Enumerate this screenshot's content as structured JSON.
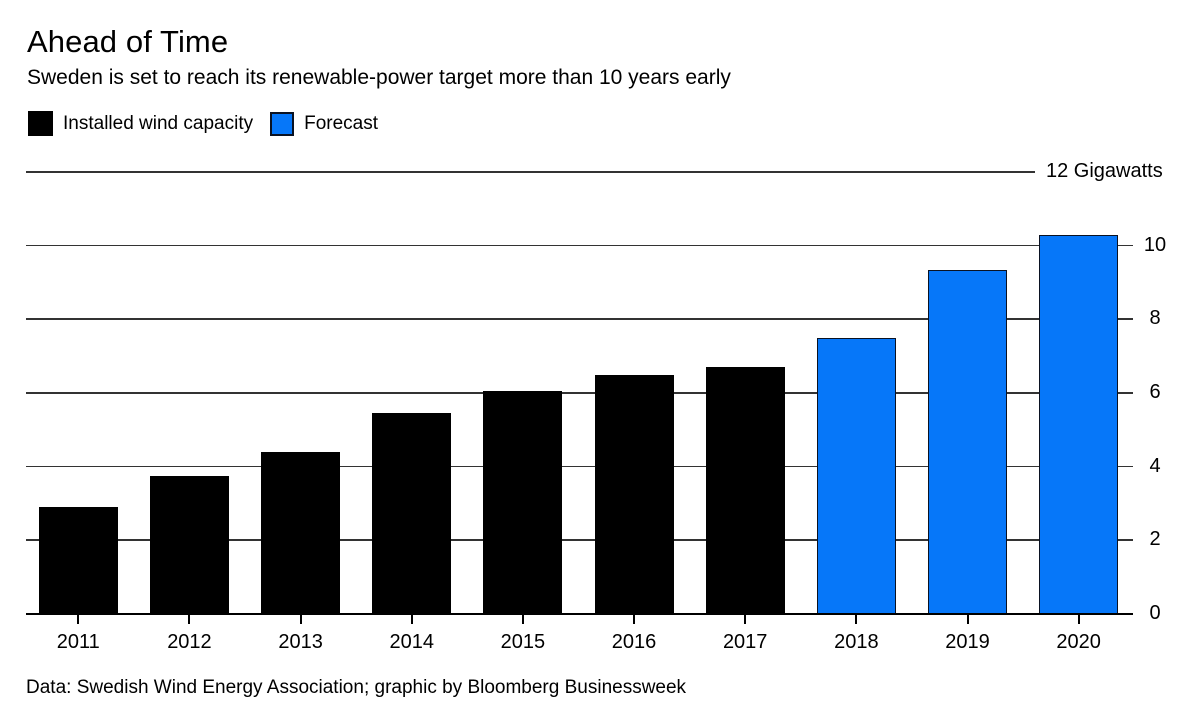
{
  "header": {
    "title": "Ahead of Time",
    "subtitle": "Sweden is set to reach its renewable-power target more than 10 years early"
  },
  "legend": [
    {
      "label": "Installed wind capacity",
      "series_type": "actual"
    },
    {
      "label": "Forecast",
      "series_type": "forecast"
    }
  ],
  "footer": {
    "source": "Data: Swedish Wind Energy Association; graphic by Bloomberg Businessweek"
  },
  "colors": {
    "actual": "#000000",
    "forecast": "#0677f9",
    "forecast_border": "#0a1222",
    "gridline": "#333333",
    "axis": "#000000",
    "text": "#000000",
    "background": "#ffffff"
  },
  "chart_data": {
    "type": "bar",
    "title": "Ahead of Time",
    "subtitle": "Sweden is set to reach its renewable-power target more than 10 years early",
    "unit": "Gigawatts",
    "categories": [
      "2011",
      "2012",
      "2013",
      "2014",
      "2015",
      "2016",
      "2017",
      "2018",
      "2019",
      "2020"
    ],
    "series": [
      {
        "name": "Installed wind capacity",
        "type": "actual",
        "values": [
          2.9,
          3.75,
          4.4,
          5.45,
          6.05,
          6.5,
          6.7,
          null,
          null,
          null
        ]
      },
      {
        "name": "Forecast",
        "type": "forecast",
        "values": [
          null,
          null,
          null,
          null,
          null,
          null,
          null,
          7.5,
          9.35,
          10.3
        ]
      }
    ],
    "ylim": [
      0,
      12
    ],
    "y_ticks": [
      0,
      2,
      4,
      6,
      8,
      10
    ],
    "top_gridline": {
      "value": 12,
      "label": "12 Gigawatts"
    },
    "grid": true,
    "legend_position": "top-left",
    "axis_labels_side": "right",
    "xlabel": "",
    "ylabel": "Gigawatts"
  }
}
